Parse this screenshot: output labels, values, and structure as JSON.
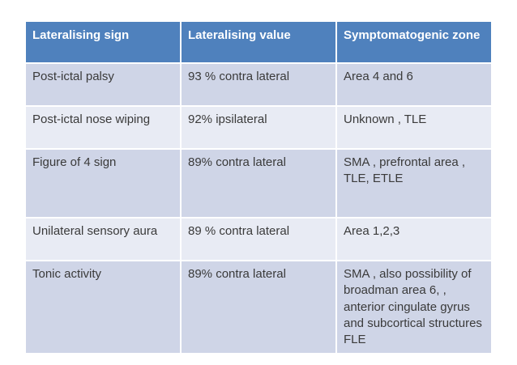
{
  "page": {
    "background": "#FFFFFF"
  },
  "table": {
    "style": {
      "header_bg": "#4F81BD",
      "header_text_color": "#FFFFFF",
      "row_band_odd": "#CFD5E7",
      "row_band_even": "#E8EBF4",
      "divider_color": "#FFFFFF",
      "body_text_color": "#3A3A3A"
    },
    "columns": [
      "Lateralising sign",
      "Lateralising value",
      "Symptomatogenic zone"
    ],
    "rows": [
      {
        "cells": [
          "Post-ictal palsy",
          "93 % contra lateral",
          "Area 4 and 6"
        ]
      },
      {
        "cells": [
          "Post-ictal nose wiping",
          "92% ipsilateral",
          "Unknown , TLE"
        ]
      },
      {
        "cells": [
          "Figure of 4 sign",
          "89% contra lateral",
          "SMA , prefrontal area , TLE, ETLE"
        ]
      },
      {
        "cells": [
          "Unilateral sensory aura",
          "89 % contra lateral",
          "Area 1,2,3"
        ]
      },
      {
        "cells": [
          "Tonic activity",
          "89% contra lateral",
          "SMA , also possibility of broadman area 6, , anterior cingulate gyrus and subcortical structures FLE"
        ]
      }
    ]
  }
}
